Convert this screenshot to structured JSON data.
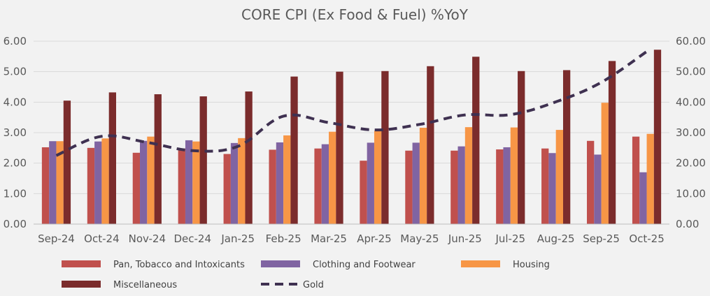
{
  "chart_data": {
    "type": "bar",
    "title": "CORE CPI (Ex Food & Fuel) %YoY",
    "categories": [
      "Sep-24",
      "Oct-24",
      "Nov-24",
      "Dec-24",
      "Jan-25",
      "Feb-25",
      "Mar-25",
      "Apr-25",
      "May-25",
      "Jun-25",
      "Jul-25",
      "Aug-25",
      "Sep-25",
      "Oct-25"
    ],
    "y_left": {
      "min": 0,
      "max": 6,
      "step": 1,
      "ticks": [
        "0.00",
        "1.00",
        "2.00",
        "3.00",
        "4.00",
        "5.00",
        "6.00"
      ]
    },
    "y_right": {
      "min": 0,
      "max": 60,
      "step": 10,
      "ticks": [
        "0.00",
        "10.00",
        "20.00",
        "30.00",
        "40.00",
        "50.00",
        "60.00"
      ]
    },
    "grid": true,
    "legend_position": "bottom",
    "series": [
      {
        "name": "Pan, Tobacco and Intoxicants",
        "type": "bar",
        "axis": "left",
        "color": "#c0504d",
        "values": [
          2.52,
          2.5,
          2.34,
          2.48,
          2.3,
          2.44,
          2.48,
          2.08,
          2.41,
          2.41,
          2.45,
          2.48,
          2.73,
          2.87
        ]
      },
      {
        "name": "Clothing and Footwear",
        "type": "bar",
        "axis": "left",
        "color": "#8064a2",
        "values": [
          2.72,
          2.71,
          2.73,
          2.75,
          2.66,
          2.68,
          2.62,
          2.67,
          2.67,
          2.55,
          2.52,
          2.33,
          2.28,
          1.7
        ]
      },
      {
        "name": "Housing",
        "type": "bar",
        "axis": "left",
        "color": "#f79646",
        "values": [
          2.72,
          2.81,
          2.87,
          2.71,
          2.82,
          2.91,
          3.03,
          3.06,
          3.16,
          3.18,
          3.17,
          3.09,
          3.98,
          2.96
        ]
      },
      {
        "name": "Miscellaneous",
        "type": "bar",
        "axis": "left",
        "color": "#7b2c2c",
        "values": [
          4.05,
          4.32,
          4.26,
          4.19,
          4.35,
          4.84,
          5.0,
          5.02,
          5.18,
          5.49,
          5.02,
          5.05,
          5.35,
          5.72
        ]
      },
      {
        "name": "Gold",
        "type": "line",
        "axis": "right",
        "color": "#3f3151",
        "dash": true,
        "values": [
          22.5,
          28.8,
          26.8,
          24.1,
          25.5,
          35.4,
          33.3,
          30.9,
          32.7,
          35.8,
          35.9,
          40.1,
          46.5,
          56.6
        ]
      }
    ]
  }
}
